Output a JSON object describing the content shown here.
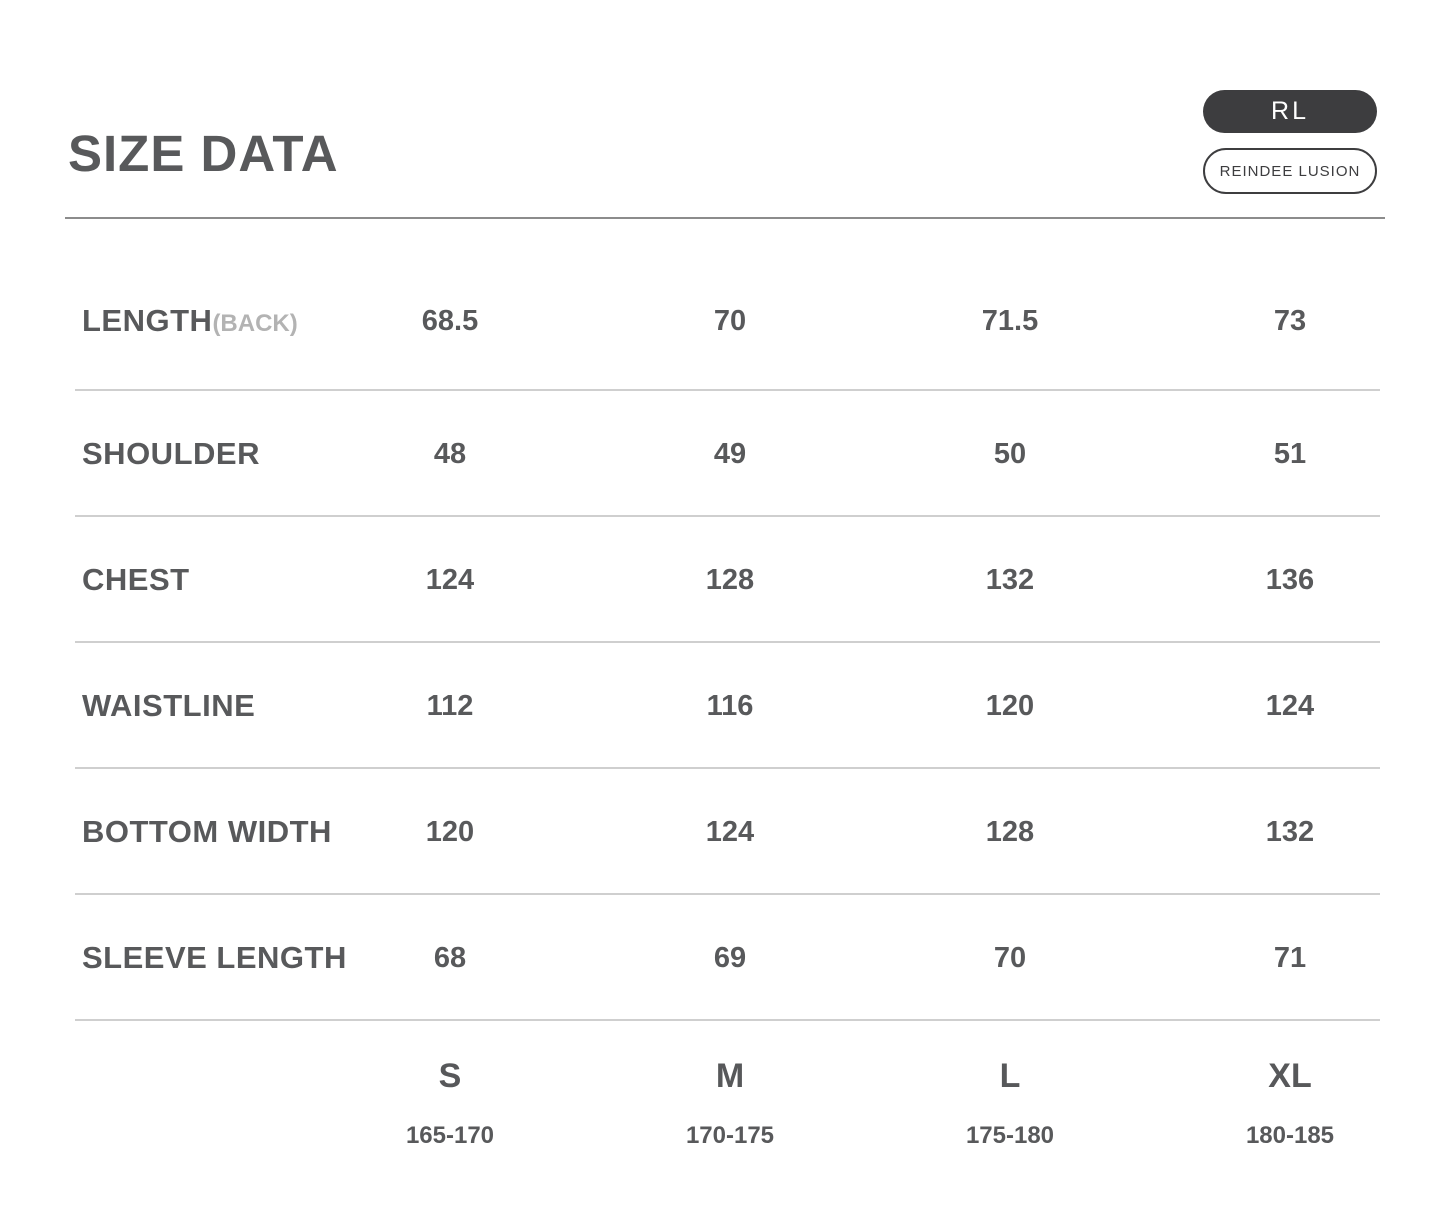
{
  "page": {
    "title": "SIZE DATA",
    "badge_short": "RL",
    "badge_brand": "REINDEE LUSION"
  },
  "colors": {
    "text_dark": "#58595b",
    "text_muted": "#b3b3b3",
    "badge_fill": "#3d3d3f",
    "rule_strong": "#8c8c8c",
    "rule_light": "#cfcfcf"
  },
  "chart_data": {
    "type": "table",
    "title": "SIZE DATA",
    "columns": [
      "S",
      "M",
      "L",
      "XL"
    ],
    "column_heights": [
      "165-170",
      "170-175",
      "175-180",
      "180-185"
    ],
    "rows": [
      {
        "label": "LENGTH",
        "label_suffix": "(BACK)",
        "values": [
          "68.5",
          "70",
          "71.5",
          "73"
        ]
      },
      {
        "label": "SHOULDER",
        "label_suffix": "",
        "values": [
          "48",
          "49",
          "50",
          "51"
        ]
      },
      {
        "label": "CHEST",
        "label_suffix": "",
        "values": [
          "124",
          "128",
          "132",
          "136"
        ]
      },
      {
        "label": "WAISTLINE",
        "label_suffix": "",
        "values": [
          "112",
          "116",
          "120",
          "124"
        ]
      },
      {
        "label": "BOTTOM WIDTH",
        "label_suffix": "",
        "values": [
          "120",
          "124",
          "128",
          "132"
        ]
      },
      {
        "label": "SLEEVE LENGTH",
        "label_suffix": "",
        "values": [
          "68",
          "69",
          "70",
          "71"
        ]
      }
    ]
  }
}
